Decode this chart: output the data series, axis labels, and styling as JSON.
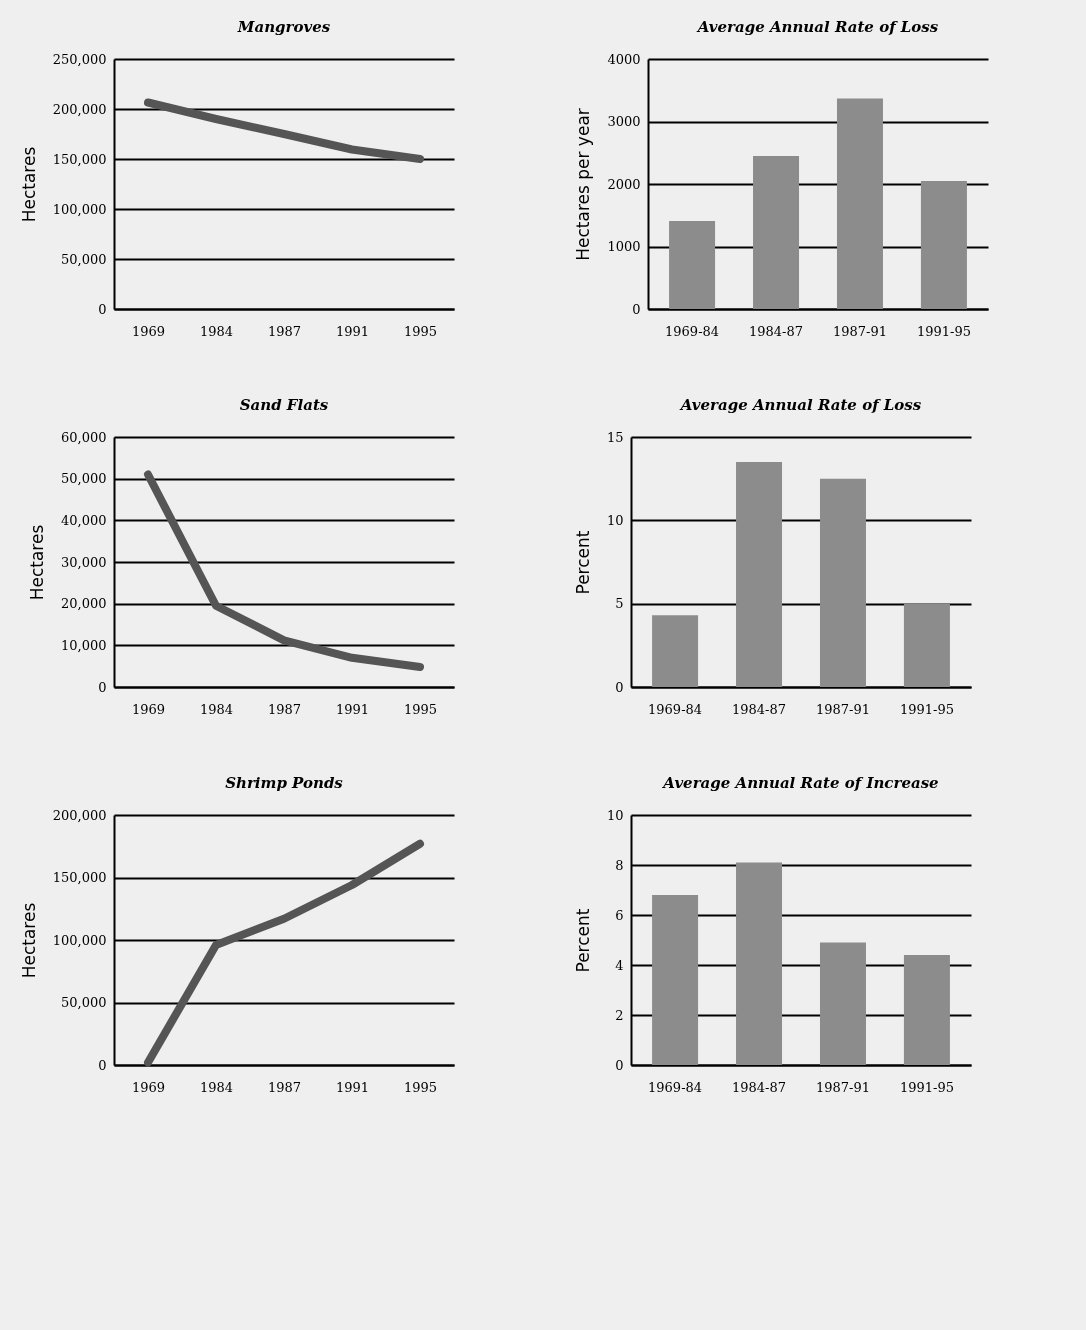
{
  "chart_data": [
    {
      "type": "line",
      "title": "Mangroves",
      "ylabel": "Hectares",
      "categories": [
        "1969",
        "1984",
        "1987",
        "1991",
        "1995"
      ],
      "values": [
        206500,
        190000,
        175000,
        159500,
        150000
      ],
      "color": "#555555",
      "ylim": [
        0,
        250000
      ],
      "yticks": [
        0,
        {
          "value": 50000,
          "label": "50,000"
        },
        {
          "value": 100000,
          "label": "100,000"
        },
        {
          "value": 150000,
          "label": "150,000"
        },
        {
          "value": 200000,
          "label": "200,000"
        },
        {
          "value": 250000,
          "label": "250,000"
        }
      ],
      "grid": "y",
      "marker": "none"
    },
    {
      "type": "bar",
      "title": "Average Annual Rate of Loss",
      "ylabel": "Hectares per year",
      "categories": [
        "1969-84",
        "1984-87",
        "1987-91",
        "1991-95"
      ],
      "values": [
        1410,
        2450,
        3370,
        2050
      ],
      "color": "#8c8c8c",
      "ylim": [
        0,
        4000
      ],
      "yticks": [
        0,
        1000,
        2000,
        3000,
        4000
      ],
      "grid": "y"
    },
    {
      "type": "line",
      "title": "Sand Flats",
      "ylabel": "Hectares",
      "categories": [
        "1969",
        "1984",
        "1987",
        "1991",
        "1995"
      ],
      "values": [
        51000,
        19500,
        11200,
        7000,
        4800
      ],
      "color": "#555555",
      "ylim": [
        0,
        60000
      ],
      "yticks": [
        0,
        {
          "value": 10000,
          "label": "10,000"
        },
        {
          "value": 20000,
          "label": "20,000"
        },
        {
          "value": 30000,
          "label": "30,000"
        },
        {
          "value": 40000,
          "label": "40,000"
        },
        {
          "value": 50000,
          "label": "50,000"
        },
        {
          "value": 60000,
          "label": "60,000"
        }
      ],
      "grid": "y",
      "marker": "none"
    },
    {
      "type": "bar",
      "title": "Average Annual Rate of Loss",
      "ylabel": "Percent",
      "categories": [
        "1969-84",
        "1984-87",
        "1987-91",
        "1991-95"
      ],
      "values": [
        4.3,
        13.5,
        12.5,
        5.0
      ],
      "color": "#8c8c8c",
      "ylim": [
        0,
        15
      ],
      "yticks": [
        0,
        5,
        10,
        15
      ],
      "grid": "y"
    },
    {
      "type": "line",
      "title": "Shrimp Ponds",
      "ylabel": "Hectares",
      "categories": [
        "1969",
        "1984",
        "1987",
        "1991",
        "1995"
      ],
      "values": [
        2000,
        96000,
        117000,
        144000,
        177000
      ],
      "color": "#555555",
      "ylim": [
        0,
        200000
      ],
      "yticks": [
        0,
        {
          "value": 50000,
          "label": "50,000"
        },
        {
          "value": 100000,
          "label": "100,000"
        },
        {
          "value": 150000,
          "label": "150,000"
        },
        {
          "value": 200000,
          "label": "200,000"
        }
      ],
      "grid": "y",
      "marker": "none"
    },
    {
      "type": "bar",
      "title": "Average Annual Rate of Increase",
      "ylabel": "Percent",
      "categories": [
        "1969-84",
        "1984-87",
        "1987-91",
        "1991-95"
      ],
      "values": [
        6.8,
        8.1,
        4.9,
        4.4
      ],
      "color": "#8c8c8c",
      "ylim": [
        0,
        10
      ],
      "yticks": [
        0,
        2,
        4,
        6,
        8,
        10
      ],
      "grid": "y"
    }
  ]
}
